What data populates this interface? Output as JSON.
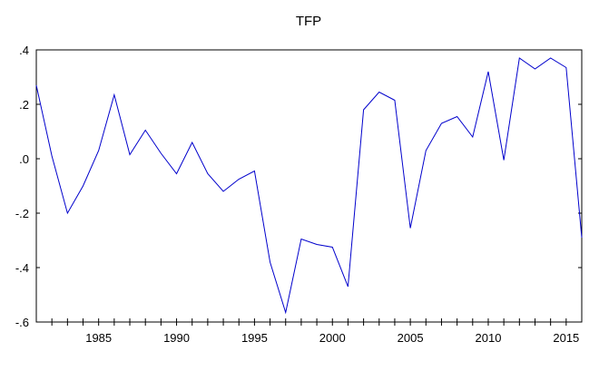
{
  "chart_data": {
    "type": "line",
    "title": "TFP",
    "xlabel": "",
    "ylabel": "",
    "xlim": [
      1981,
      2016
    ],
    "ylim": [
      -0.6,
      0.4
    ],
    "x_ticks": [
      1985,
      1990,
      1995,
      2000,
      2005,
      2010,
      2015
    ],
    "x_tick_labels": [
      "1985",
      "1990",
      "1995",
      "2000",
      "2005",
      "2010",
      "2015"
    ],
    "y_ticks": [
      -0.6,
      -0.4,
      -0.2,
      0.0,
      0.2,
      0.4
    ],
    "y_tick_labels": [
      "-.6",
      "-.4",
      "-.2",
      ".0",
      ".2",
      ".4"
    ],
    "grid": false,
    "legend": "none",
    "series_color": "#0000cc",
    "series": [
      {
        "x": [
          1981,
          1982,
          1983,
          1984,
          1985,
          1986,
          1987,
          1988,
          1989,
          1990,
          1991,
          1992,
          1993,
          1994,
          1995,
          1996,
          1997,
          1998,
          1999,
          2000,
          2001,
          2002,
          2003,
          2004,
          2005,
          2006,
          2007,
          2008,
          2009,
          2010,
          2011,
          2012,
          2013,
          2014,
          2015,
          2016
        ],
        "values": [
          0.27,
          0.01,
          -0.2,
          -0.1,
          0.03,
          0.235,
          0.015,
          0.105,
          0.02,
          -0.055,
          0.06,
          -0.055,
          -0.12,
          -0.075,
          -0.045,
          -0.38,
          -0.565,
          -0.295,
          -0.315,
          -0.325,
          -0.47,
          0.18,
          0.245,
          0.215,
          -0.255,
          0.03,
          0.13,
          0.155,
          0.08,
          0.32,
          -0.005,
          0.37,
          0.33,
          0.37,
          0.335,
          -0.29
        ]
      }
    ]
  }
}
